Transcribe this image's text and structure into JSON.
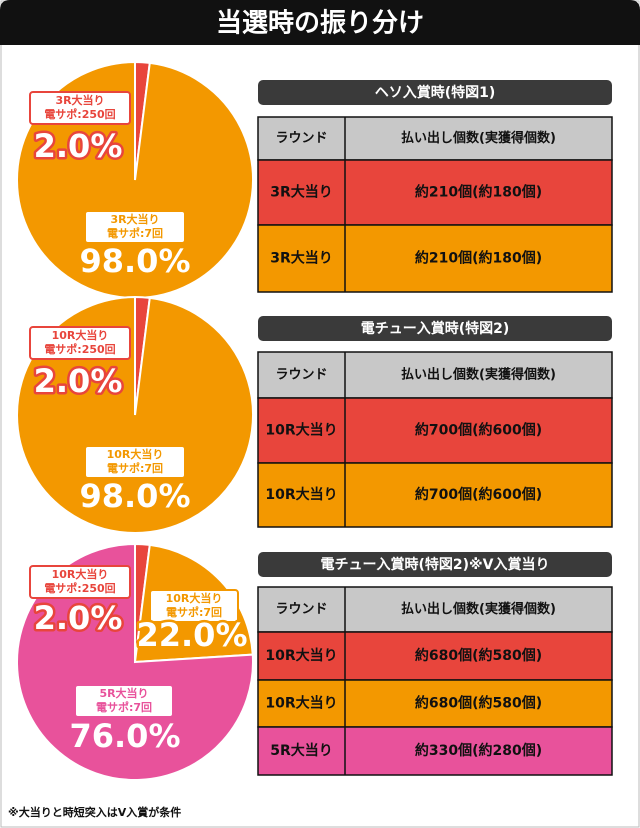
{
  "title": "当選時の振り分け",
  "chart_data": [
    {
      "type": "pie",
      "categories": [
        [
          "3R大当り",
          "電サポ:250回"
        ],
        [
          "3R大当り",
          "電サポ:7回"
        ]
      ],
      "values": [
        2.0,
        98.0
      ],
      "value_labels": [
        "2.0%",
        "98.0%"
      ],
      "colors": [
        "#e8453c",
        "#f39800"
      ]
    },
    {
      "type": "pie",
      "categories": [
        [
          "10R大当り",
          "電サポ:250回"
        ],
        [
          "10R大当り",
          "電サポ:7回"
        ]
      ],
      "values": [
        2.0,
        98.0
      ],
      "value_labels": [
        "2.0%",
        "98.0%"
      ],
      "colors": [
        "#e8453c",
        "#f39800"
      ]
    },
    {
      "type": "pie",
      "categories": [
        [
          "10R大当り",
          "電サポ:250回"
        ],
        [
          "10R大当り",
          "電サポ:7回"
        ],
        [
          "5R大当り",
          "電サポ:7回"
        ]
      ],
      "values": [
        2.0,
        22.0,
        76.0
      ],
      "value_labels": [
        "2.0%",
        "22.0%",
        "76.0%"
      ],
      "colors": [
        "#e8453c",
        "#f39800",
        "#e8529b"
      ]
    }
  ],
  "tables": [
    {
      "heading": "ヘソ入賞時(特図1)",
      "columns": [
        "ラウンド",
        "払い出し個数(実獲得個数)"
      ],
      "rows": [
        [
          "3R大当り",
          "約210個(約180個)"
        ],
        [
          "3R大当り",
          "約210個(約180個)"
        ]
      ],
      "row_colors": [
        "#e8453c",
        "#f39800"
      ]
    },
    {
      "heading": "電チュー入賞時(特図2)",
      "columns": [
        "ラウンド",
        "払い出し個数(実獲得個数)"
      ],
      "rows": [
        [
          "10R大当り",
          "約700個(約600個)"
        ],
        [
          "10R大当り",
          "約700個(約600個)"
        ]
      ],
      "row_colors": [
        "#e8453c",
        "#f39800"
      ]
    },
    {
      "heading": "電チュー入賞時(特図2)※V入賞当り",
      "columns": [
        "ラウンド",
        "払い出し個数(実獲得個数)"
      ],
      "rows": [
        [
          "10R大当り",
          "約680個(約580個)"
        ],
        [
          "10R大当り",
          "約680個(約580個)"
        ],
        [
          "5R大当り",
          "約330個(約280個)"
        ]
      ],
      "row_colors": [
        "#e8453c",
        "#f39800",
        "#e8529b"
      ]
    }
  ],
  "footnote": "※大当りと時短突入はV入賞が条件"
}
